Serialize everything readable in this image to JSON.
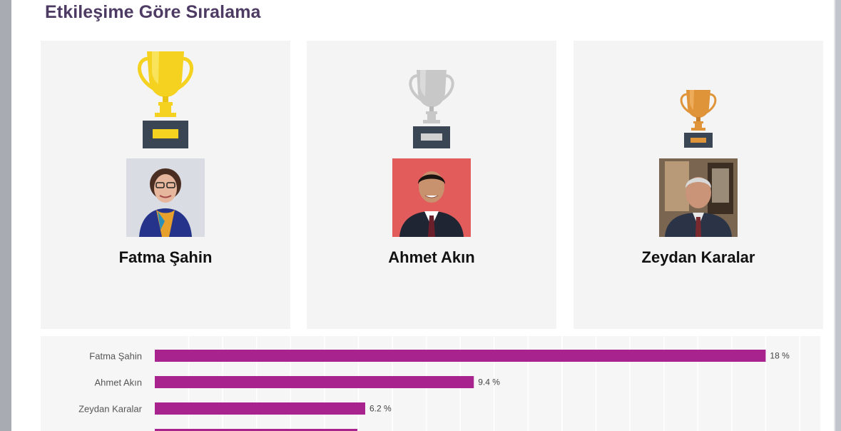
{
  "page": {
    "title": "Etkileşime Göre Sıralama"
  },
  "cards": [
    {
      "rank": 1,
      "name": "Fatma Şahin",
      "trophy": "gold-trophy-icon",
      "photo_bg": "#d9dce3"
    },
    {
      "rank": 2,
      "name": "Ahmet Akın",
      "trophy": "silver-trophy-icon",
      "photo_bg": "#e35c5c"
    },
    {
      "rank": 3,
      "name": "Zeydan Karalar",
      "trophy": "bronze-trophy-icon",
      "photo_bg": "#7a6650"
    }
  ],
  "colors": {
    "title": "#4e3b63",
    "bar": "#a9238f",
    "gold": "#f4d21f",
    "silver": "#c8c8c8",
    "bronze": "#e0943a",
    "trophy_base": "#3b4654"
  },
  "chart_data": {
    "type": "bar",
    "orientation": "horizontal",
    "categories": [
      "Fatma Şahin",
      "Ahmet Akın",
      "Zeydan Karalar"
    ],
    "values": [
      18,
      9.4,
      6.2
    ],
    "value_labels": [
      "18 %",
      "9.4 %",
      "6.2 %"
    ],
    "xlim": [
      0,
      19
    ],
    "grid": true,
    "legend": "none",
    "partial_fourth_bar_visible": true
  }
}
